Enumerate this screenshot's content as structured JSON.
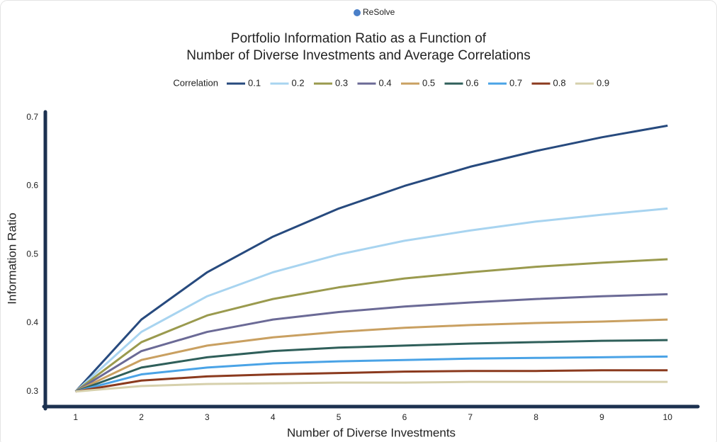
{
  "logo": "ReSolve",
  "chart_data": {
    "type": "line",
    "title": [
      "Portfolio Information Ratio as a Function of",
      "Number of Diverse Investments and Average Correlations"
    ],
    "x_label": "Number of Diverse Investments",
    "y_label": "Information Ratio",
    "legend_title": "Correlation",
    "legend_position": "top",
    "x": [
      1,
      2,
      3,
      4,
      5,
      6,
      7,
      8,
      9,
      10
    ],
    "xlim": [
      0.54,
      10.46
    ],
    "xticks": [
      1,
      2,
      3,
      4,
      5,
      6,
      7,
      8,
      9,
      10
    ],
    "ylim": [
      0.278,
      0.708
    ],
    "yticks": [
      0.3,
      0.4,
      0.5,
      0.6,
      0.7
    ],
    "grid": false,
    "series": [
      {
        "name": "0.1",
        "color": "#274a7e",
        "values": [
          0.3,
          0.405,
          0.474,
          0.526,
          0.567,
          0.6,
          0.628,
          0.651,
          0.671,
          0.688
        ]
      },
      {
        "name": "0.2",
        "color": "#a8d4f0",
        "values": [
          0.3,
          0.387,
          0.439,
          0.474,
          0.5,
          0.52,
          0.535,
          0.548,
          0.558,
          0.567
        ]
      },
      {
        "name": "0.3",
        "color": "#9a9a4e",
        "values": [
          0.3,
          0.372,
          0.411,
          0.435,
          0.452,
          0.465,
          0.474,
          0.482,
          0.488,
          0.493
        ]
      },
      {
        "name": "0.4",
        "color": "#6b6a96",
        "values": [
          0.3,
          0.359,
          0.387,
          0.405,
          0.416,
          0.424,
          0.43,
          0.435,
          0.439,
          0.442
        ]
      },
      {
        "name": "0.5",
        "color": "#c9a061",
        "values": [
          0.3,
          0.346,
          0.367,
          0.379,
          0.387,
          0.393,
          0.397,
          0.4,
          0.402,
          0.405
        ]
      },
      {
        "name": "0.6",
        "color": "#2f5f5a",
        "values": [
          0.3,
          0.335,
          0.35,
          0.359,
          0.364,
          0.367,
          0.37,
          0.372,
          0.374,
          0.375
        ]
      },
      {
        "name": "0.7",
        "color": "#4aa3e6",
        "values": [
          0.3,
          0.325,
          0.335,
          0.341,
          0.344,
          0.346,
          0.348,
          0.349,
          0.35,
          0.351
        ]
      },
      {
        "name": "0.8",
        "color": "#8b3a1e",
        "values": [
          0.3,
          0.316,
          0.322,
          0.325,
          0.327,
          0.329,
          0.33,
          0.33,
          0.331,
          0.331
        ]
      },
      {
        "name": "0.9",
        "color": "#d6d0ac",
        "values": [
          0.3,
          0.308,
          0.311,
          0.312,
          0.313,
          0.313,
          0.314,
          0.314,
          0.314,
          0.314
        ]
      }
    ]
  }
}
